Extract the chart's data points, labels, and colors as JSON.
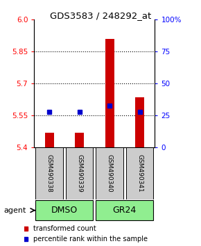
{
  "title": "GDS3583 / 248292_at",
  "samples": [
    "GSM490338",
    "GSM490339",
    "GSM490340",
    "GSM490341"
  ],
  "red_values": [
    5.47,
    5.47,
    5.91,
    5.635
  ],
  "blue_percentiles": [
    28,
    28,
    33,
    28
  ],
  "ylim_left": [
    5.4,
    6.0
  ],
  "ylim_right": [
    0,
    100
  ],
  "left_ticks": [
    5.4,
    5.55,
    5.7,
    5.85,
    6.0
  ],
  "right_ticks": [
    0,
    25,
    50,
    75,
    100
  ],
  "right_tick_labels": [
    "0",
    "25",
    "50",
    "75",
    "100%"
  ],
  "bar_color": "#cc0000",
  "dot_color": "#0000cc",
  "bar_width": 0.3,
  "sample_box_color": "#cccccc",
  "group_dmso_color": "#90ee90",
  "group_gr24_color": "#90ee90"
}
